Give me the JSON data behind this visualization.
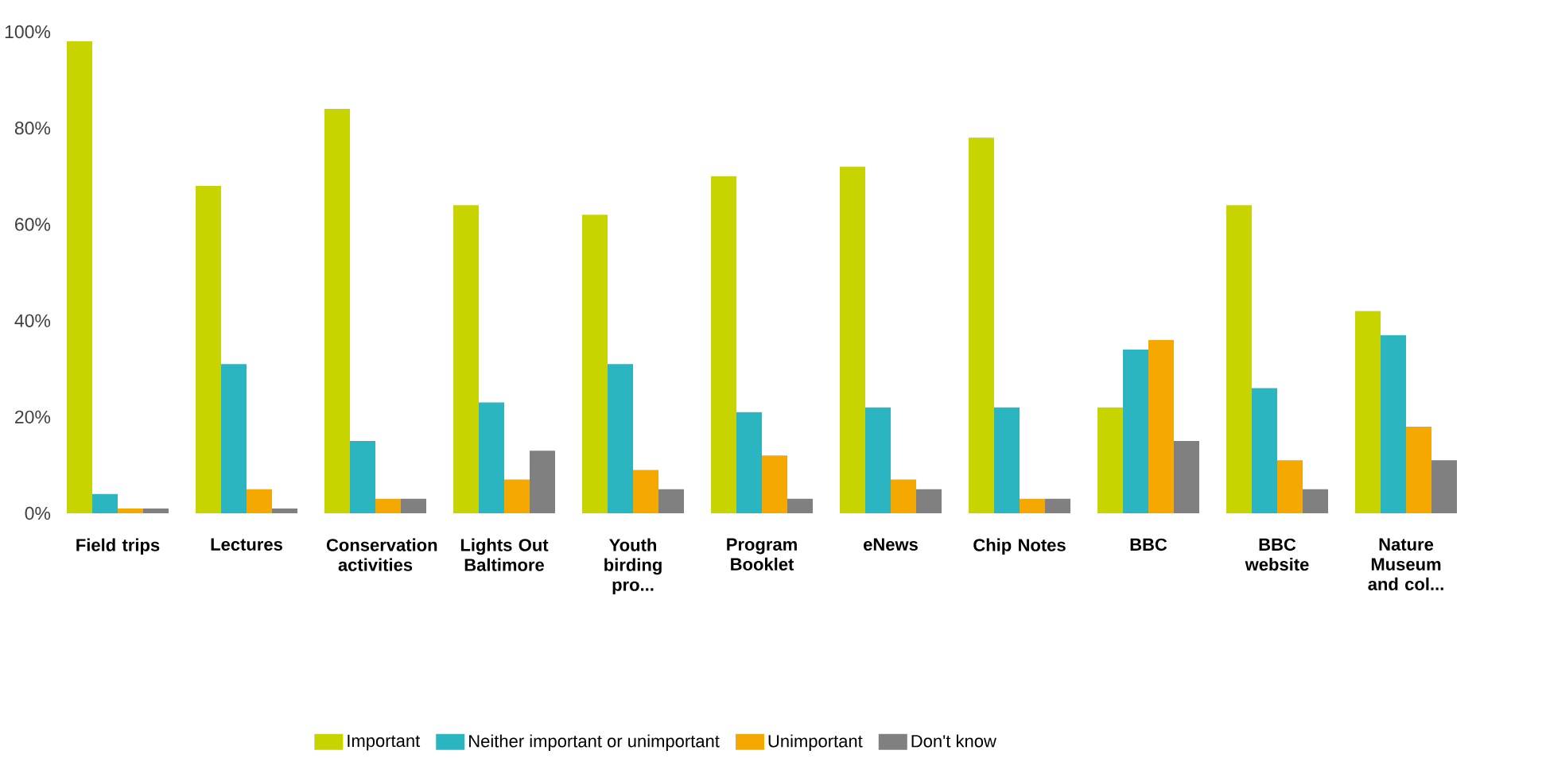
{
  "chart_data": {
    "type": "bar",
    "categories": [
      "Field trips",
      "Lectures",
      "Conservation activities",
      "Lights Out Baltimore",
      "Youth birding pro...",
      "Program Booklet",
      "eNews",
      "Chip Notes",
      "BBC",
      "BBC website",
      "Nature Museum and col..."
    ],
    "series": [
      {
        "name": "Important",
        "color": "#c8d400",
        "values": [
          98,
          68,
          84,
          64,
          62,
          70,
          72,
          78,
          22,
          64,
          42
        ]
      },
      {
        "name": "Neither important or unimportant",
        "color": "#2bb5c0",
        "values": [
          4,
          31,
          15,
          23,
          31,
          21,
          22,
          22,
          34,
          26,
          37
        ]
      },
      {
        "name": "Unimportant",
        "color": "#f5a800",
        "values": [
          1,
          5,
          3,
          7,
          9,
          12,
          7,
          3,
          36,
          11,
          18
        ]
      },
      {
        "name": "Don't know",
        "color": "#808080",
        "values": [
          1,
          1,
          3,
          13,
          5,
          3,
          5,
          3,
          15,
          5,
          11
        ]
      }
    ],
    "ylim": [
      0,
      100
    ],
    "yticks": [
      {
        "value": 0,
        "label": "0%"
      },
      {
        "value": 20,
        "label": "20%"
      },
      {
        "value": 40,
        "label": "40%"
      },
      {
        "value": 60,
        "label": "60%"
      },
      {
        "value": 80,
        "label": "80%"
      },
      {
        "value": 100,
        "label": "100%"
      }
    ],
    "grid": false,
    "legend": "bottom"
  }
}
